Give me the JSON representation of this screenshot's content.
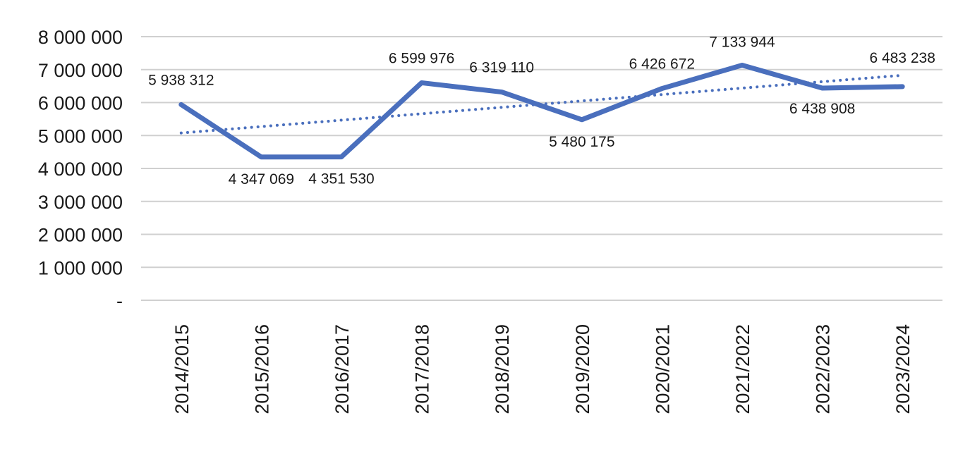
{
  "chart_data": {
    "type": "line",
    "categories": [
      "2014/2015",
      "2015/2016",
      "2016/2017",
      "2017/2018",
      "2018/2019",
      "2019/2020",
      "2020/2021",
      "2021/2022",
      "2022/2023",
      "2023/2024"
    ],
    "series": [
      {
        "values": [
          5938312,
          4347069,
          4351530,
          6599976,
          6319110,
          5480175,
          6426672,
          7133944,
          6438908,
          6483238
        ],
        "data_labels": [
          "5 938 312",
          "4 347 069",
          "4 351 530",
          "6 599 976",
          "6 319 110",
          "5 480 175",
          "6 426 672",
          "7 133 944",
          "6 438 908",
          "6 483 238"
        ],
        "color": "#4a6fbd",
        "style": "solid"
      }
    ],
    "trendline": {
      "type": "linear",
      "style": "dotted",
      "color": "#4a6fbd"
    },
    "y_ticks": [
      {
        "value": 0,
        "label": "-"
      },
      {
        "value": 1000000,
        "label": "1 000 000"
      },
      {
        "value": 2000000,
        "label": "2 000 000"
      },
      {
        "value": 3000000,
        "label": "3 000 000"
      },
      {
        "value": 4000000,
        "label": "4 000 000"
      },
      {
        "value": 5000000,
        "label": "5 000 000"
      },
      {
        "value": 6000000,
        "label": "6 000 000"
      },
      {
        "value": 7000000,
        "label": "7 000 000"
      },
      {
        "value": 8000000,
        "label": "8 000 000"
      }
    ],
    "ylim": [
      0,
      8000000
    ],
    "grid": true,
    "title": "",
    "xlabel": "",
    "ylabel": ""
  }
}
